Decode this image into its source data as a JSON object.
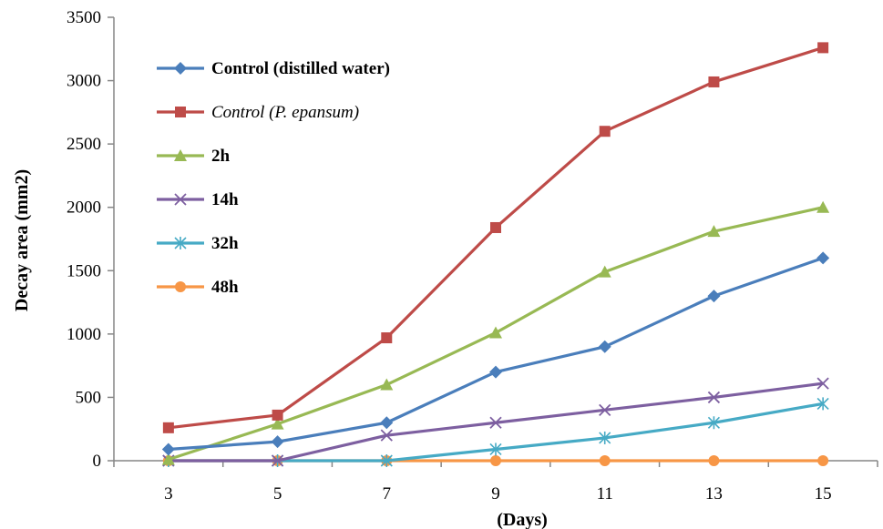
{
  "chart_data": {
    "type": "line",
    "xlabel": "(Days)",
    "ylabel": "Decay area (mm2)",
    "x": [
      3,
      5,
      7,
      9,
      11,
      13,
      15
    ],
    "xlim": [
      2,
      16
    ],
    "ylim": [
      0,
      3500
    ],
    "yticks": [
      0,
      500,
      1000,
      1500,
      2000,
      2500,
      3000,
      3500
    ],
    "grid": false,
    "legend_position": "top-left",
    "series": [
      {
        "name": "Control (distilled water)",
        "color": "#4a7ebb",
        "marker": "diamond",
        "italic": false,
        "values": [
          90,
          150,
          300,
          700,
          900,
          1300,
          1600
        ]
      },
      {
        "name": "Control (P. epansum)",
        "color": "#be4b48",
        "marker": "square",
        "italic": true,
        "values": [
          260,
          360,
          970,
          1840,
          2600,
          2990,
          3260
        ]
      },
      {
        "name": "2h",
        "color": "#98b954",
        "marker": "triangle",
        "italic": false,
        "values": [
          10,
          290,
          600,
          1010,
          1490,
          1810,
          2000
        ]
      },
      {
        "name": "14h",
        "color": "#7d5fa0",
        "marker": "x",
        "italic": false,
        "values": [
          0,
          0,
          200,
          300,
          400,
          500,
          610
        ]
      },
      {
        "name": "32h",
        "color": "#46aac5",
        "marker": "star",
        "italic": false,
        "values": [
          0,
          0,
          0,
          90,
          180,
          300,
          450
        ]
      },
      {
        "name": "48h",
        "color": "#f79646",
        "marker": "circle",
        "italic": false,
        "values": [
          0,
          0,
          0,
          0,
          0,
          0,
          0
        ]
      }
    ]
  }
}
